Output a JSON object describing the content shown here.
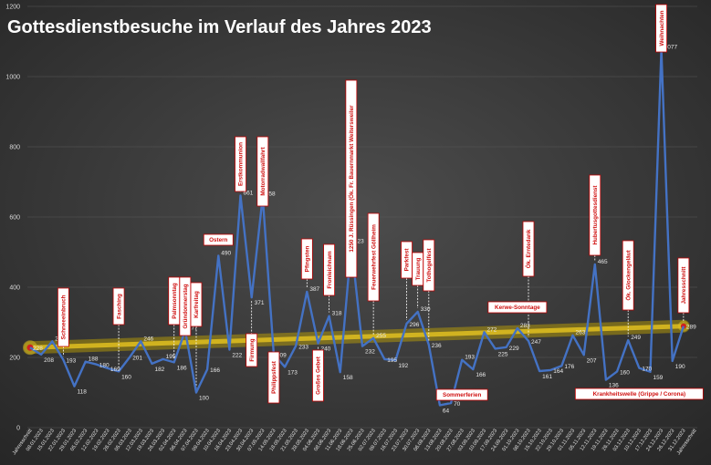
{
  "chart_data": {
    "type": "line",
    "title": "Gottesdienstbesuche im Verlauf des Jahres 2023",
    "ylim": [
      0,
      1200
    ],
    "yticks": [
      0,
      200,
      400,
      600,
      800,
      1000,
      1200
    ],
    "grid": true,
    "colors": {
      "series": "#4472c4",
      "trend": "#c8a800",
      "annotation": "#c00000",
      "marker": "#d02020"
    },
    "x": [
      "Jahresschnitt",
      "08.01.2023",
      "15.01.2023",
      "22.01.2023",
      "29.01.2023",
      "05.02.2023",
      "12.02.2023",
      "19.02.2023",
      "26.02.2023",
      "05.03.2023",
      "12.03.2023",
      "19.03.2023",
      "26.03.2023",
      "02.04.2023",
      "06.04.2023",
      "07.04.2023",
      "09.04.2023",
      "10.04.2023",
      "16.04.2023",
      "23.04.2023",
      "30.04.2023",
      "07.05.2023",
      "14.05.2023",
      "18.05.2023",
      "21.05.2023",
      "28.05.2023",
      "04.06.2023",
      "08.06.2023",
      "11.06.2023",
      "18.06.2023",
      "25.06.2023",
      "02.07.2023",
      "09.07.2023",
      "16.07.2023",
      "23.07.2023",
      "30.07.2023",
      "06.08.2023",
      "13.08.2023",
      "20.08.2023",
      "27.08.2023",
      "03.09.2023",
      "10.09.2023",
      "17.09.2023",
      "24.09.2023",
      "01.10.2023",
      "08.10.2023",
      "15.10.2023",
      "22.10.2023",
      "29.10.2023",
      "01.11.2023",
      "05.11.2023",
      "12.11.2023",
      "19.11.2023",
      "26.11.2023",
      "03.12.2023",
      "10.12.2023",
      "17.12.2023",
      "24.12.2023",
      "26.12.2023",
      "31.12.2023",
      "Jahresschnitt"
    ],
    "series": [
      {
        "values": [
          228,
          208,
          246,
          193,
          118,
          188,
          180,
          169,
          160,
          201,
          246,
          182,
          195,
          186,
          277,
          100,
          166,
          490,
          222,
          661,
          371,
          658,
          209,
          173,
          233,
          387,
          240,
          318,
          158,
          523,
          232,
          255,
          195,
          192,
          296,
          330,
          236,
          64,
          70,
          193,
          166,
          272,
          225,
          229,
          283,
          247,
          161,
          164,
          176,
          263,
          207,
          465,
          136,
          160,
          249,
          170,
          159,
          1077,
          190,
          289,
          null
        ]
      }
    ],
    "trend": {
      "start": 228,
      "end": 289
    },
    "annotations": [
      {
        "text": "Schneeeinbruch",
        "index": 3
      },
      {
        "text": "Fasching",
        "index": 8
      },
      {
        "text": "Palmsonntag",
        "index": 13
      },
      {
        "text": "Gründonnerstag",
        "index": 14
      },
      {
        "text": "Karfreitag",
        "index": 15
      },
      {
        "text": "Ostern",
        "index": 17
      },
      {
        "text": "Erstkommunion",
        "index": 19
      },
      {
        "text": "Firmung",
        "index": 20
      },
      {
        "text": "Motorradwallfahrt",
        "index": 21
      },
      {
        "text": "Philippsfest",
        "index": 22
      },
      {
        "text": "Pfingsten",
        "index": 25
      },
      {
        "text": "Großes Gebet",
        "index": 26
      },
      {
        "text": "Fronleichnam",
        "index": 27
      },
      {
        "text": "1250 J. Rüssingen (Ök. Fr. Bauernmarkt Weitersweiler",
        "index": 29
      },
      {
        "text": "Feuerwehrfest Göllheim",
        "index": 31
      },
      {
        "text": "Parkfest",
        "index": 34
      },
      {
        "text": "Trauung",
        "index": 35
      },
      {
        "text": "Tothogelfest",
        "index": 36
      },
      {
        "text": "Sommerferien",
        "index": 39
      },
      {
        "text": "Kerwe-Sonntage",
        "index": 44
      },
      {
        "text": "Ök. Erntedank",
        "index": 45
      },
      {
        "text": "Hubertusgottesdienst",
        "index": 51
      },
      {
        "text": "Ök. Glockengeläut",
        "index": 54
      },
      {
        "text": "Weihnachten",
        "index": 57
      },
      {
        "text": "Krankheitswelle (Grippe / Corona)",
        "index": 55
      },
      {
        "text": "Jahresschnitt",
        "index": 59
      }
    ]
  }
}
